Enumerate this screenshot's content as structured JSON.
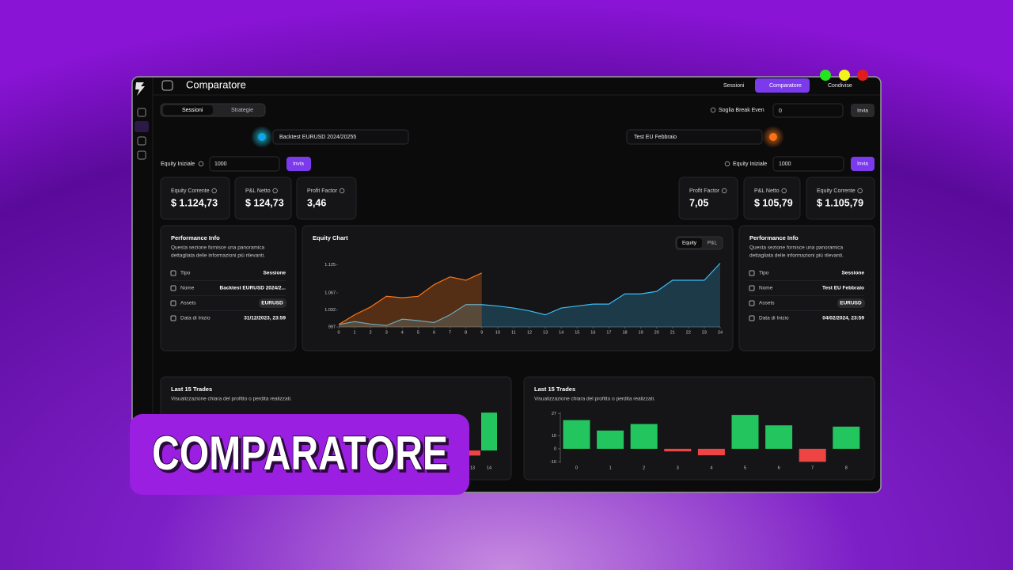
{
  "header": {
    "title": "Comparatore",
    "nav": [
      "Sessioni",
      "Comparatore",
      "Condivise"
    ]
  },
  "tabs": [
    "Sessioni",
    "Strategie"
  ],
  "break_even": {
    "label": "Soglia Break Even",
    "value": "0",
    "button": "Invia"
  },
  "left": {
    "session": "Backtest EURUSD 2024/20255",
    "equity_label": "Equity Iniziale",
    "equity_input": "1000",
    "button": "Invia",
    "stats": [
      {
        "label": "Equity Corrente",
        "value": "$ 1.124,73"
      },
      {
        "label": "P&L Netto",
        "value": "$ 124,73"
      },
      {
        "label": "Profit Factor",
        "value": "3,46"
      }
    ],
    "info": {
      "title": "Performance Info",
      "description": [
        "Questa sezione fornisce una panoramica",
        "dettagliata delle informazioni più rilevanti."
      ],
      "rows": [
        {
          "label": "Tipo",
          "value": "Sessione"
        },
        {
          "label": "Nome",
          "value": "Backtest EURUSD 2024/2..."
        },
        {
          "label": "Assets",
          "value": "EURUSD"
        },
        {
          "label": "Data di Inizio",
          "value": "31/12/2023, 23:59"
        }
      ]
    }
  },
  "right": {
    "session": "Test EU Febbraio",
    "equity_label": "Equity Iniziale",
    "equity_input": "1000",
    "button": "Invia",
    "stats": [
      {
        "label": "Profit Factor",
        "value": "7,05"
      },
      {
        "label": "P&L Netto",
        "value": "$ 105,79"
      },
      {
        "label": "Equity Corrente",
        "value": "$ 1.105,79"
      }
    ],
    "info": {
      "title": "Performance Info",
      "description": [
        "Questa sezione fornisce una panoramica",
        "dettagliata delle informazioni più rilevanti."
      ],
      "rows": [
        {
          "label": "Tipo",
          "value": "Sessione"
        },
        {
          "label": "Nome",
          "value": "Test EU Febbraio"
        },
        {
          "label": "Assets",
          "value": "EURUSD"
        },
        {
          "label": "Data di Inizio",
          "value": "04/02/2024, 23:59"
        }
      ]
    }
  },
  "equity_chart": {
    "type": "area",
    "title": "Equity Chart",
    "toggle": [
      "Equity",
      "P&L"
    ],
    "xlim": [
      0,
      24
    ],
    "xticks": [
      0,
      1,
      2,
      3,
      4,
      5,
      6,
      7,
      8,
      9,
      10,
      11,
      12,
      13,
      14,
      15,
      16,
      17,
      18,
      19,
      20,
      21,
      22,
      23,
      24
    ],
    "ylim": [
      997,
      1128
    ],
    "yticks": [
      997,
      {
        "value": 1032,
        "label": "1.032"
      },
      {
        "value": 1067,
        "label": "1.067"
      },
      {
        "value": 1125,
        "label": "1.125"
      }
    ],
    "series": [
      {
        "color": "#f97316",
        "x": [
          0,
          1,
          2,
          3,
          4,
          5,
          6,
          7,
          8,
          9
        ],
        "values": [
          1002,
          1022,
          1038,
          1060,
          1057,
          1060,
          1084,
          1100,
          1093,
          1108
        ]
      },
      {
        "color": "#38bdf8",
        "x": [
          0,
          1,
          2,
          3,
          4,
          5,
          6,
          7,
          8,
          9,
          10,
          11,
          12,
          13,
          14,
          15,
          16,
          17,
          18,
          19,
          20,
          21,
          22,
          23,
          24
        ],
        "values": [
          1002,
          1008,
          1003,
          1000,
          1013,
          1010,
          1006,
          1022,
          1043,
          1043,
          1040,
          1036,
          1030,
          1022,
          1036,
          1040,
          1044,
          1044,
          1065,
          1065,
          1070,
          1093,
          1093,
          1093,
          1128
        ]
      }
    ]
  },
  "trades_left": {
    "type": "bar",
    "title": "Last 15 Trades",
    "subtitle": "Visualizzazione chiara del profitto o perdita realizzati.",
    "categories": [
      "13",
      "14"
    ],
    "values": [
      -4,
      30
    ],
    "ylim": [
      -10,
      32
    ]
  },
  "trades_right": {
    "type": "bar",
    "title": "Last 15 Trades",
    "subtitle": "Visualizzazione chiara del profitto o perdita realizzati.",
    "categories": [
      "0",
      "1",
      "2",
      "3",
      "4",
      "5",
      "6",
      "7",
      "8"
    ],
    "values": [
      22,
      14,
      19,
      -2,
      -5,
      26,
      18,
      -10,
      17
    ],
    "ylim": [
      -11,
      28
    ],
    "yticks": [
      -10,
      0,
      10,
      27
    ],
    "positive_color": "#22c55e",
    "negative_color": "#ef4444"
  },
  "overlay": {
    "text": "COMPARATORE"
  }
}
